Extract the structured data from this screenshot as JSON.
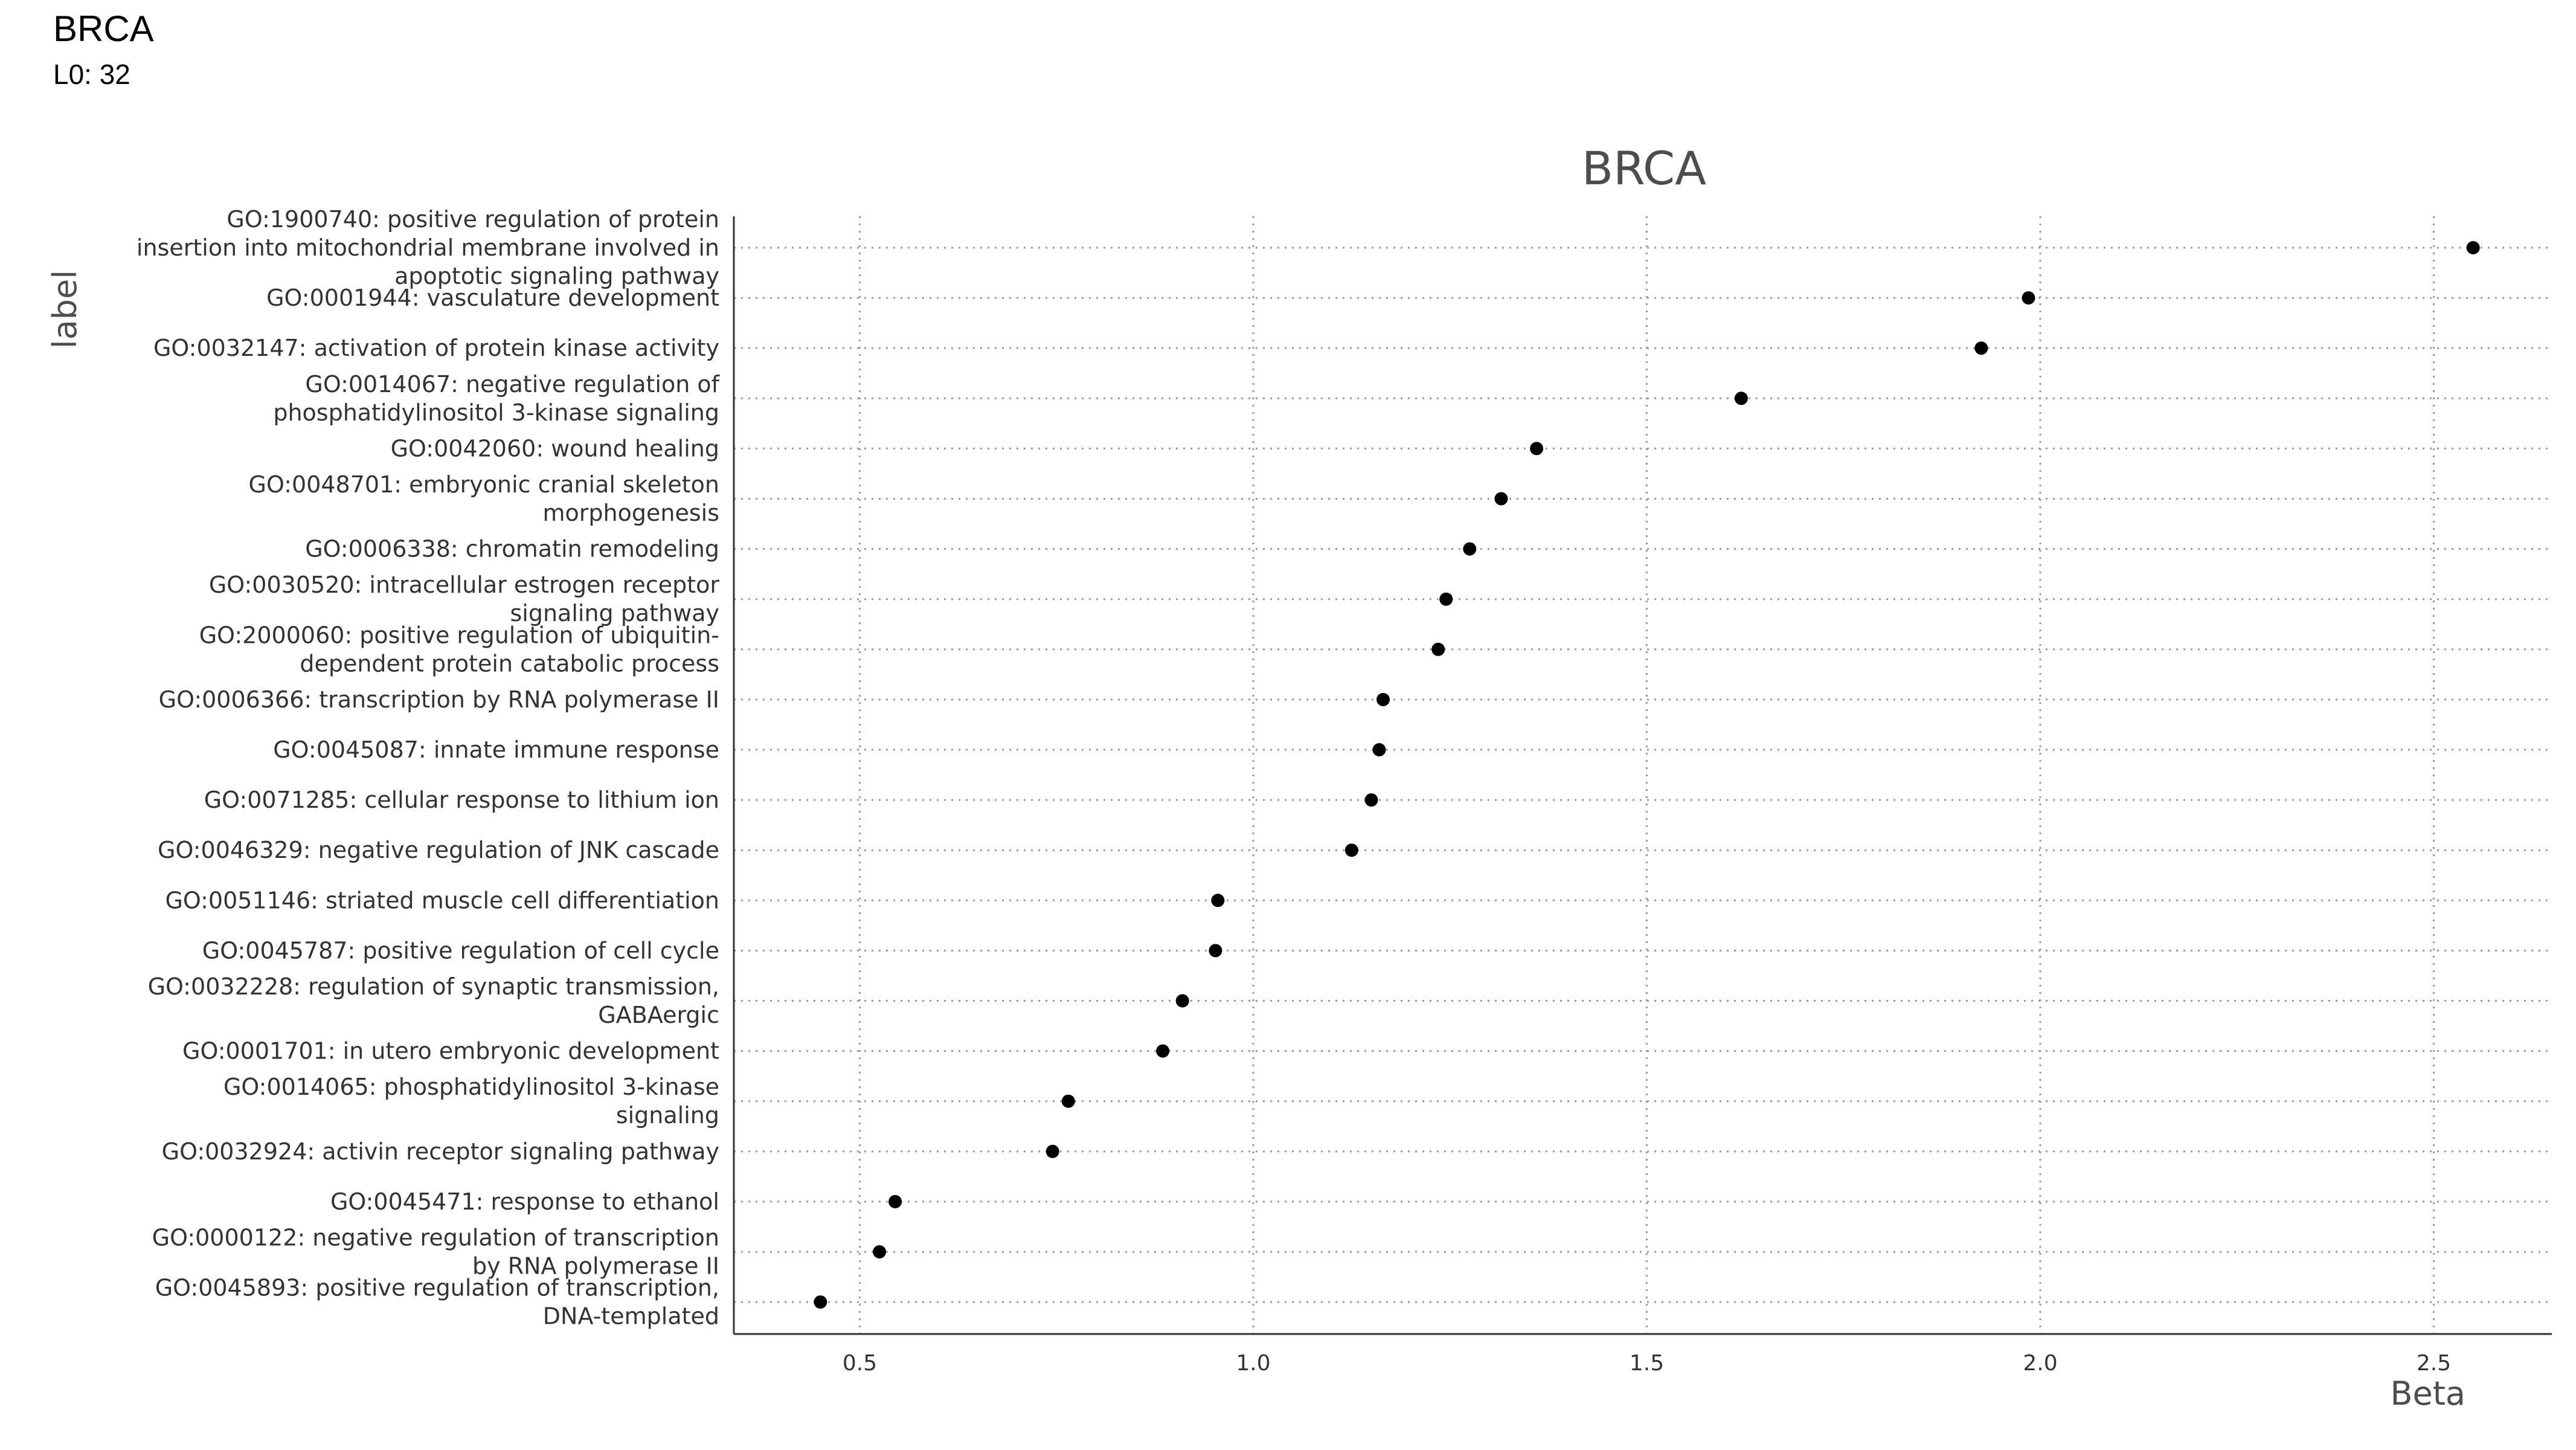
{
  "header": {
    "title": "BRCA",
    "subtitle": "L0: 32"
  },
  "chart_data": {
    "type": "scatter",
    "title": "BRCA",
    "xlabel": "Beta",
    "ylabel": "label",
    "xlim": [
      0.34,
      2.65
    ],
    "x_ticks": [
      0.5,
      1.0,
      1.5,
      2.0,
      2.5
    ],
    "x_tick_labels": [
      "0.5",
      "1.0",
      "1.5",
      "2.0",
      "2.5"
    ],
    "grid": true,
    "grid_style": "dotted",
    "point_color": "#000000",
    "points": [
      {
        "label": "GO:1900740: positive regulation of protein insertion into mitochondrial membrane involved in apoptotic signaling pathway",
        "lines": [
          "GO:1900740: positive regulation of protein",
          "insertion into mitochondrial membrane involved in",
          "apoptotic signaling pathway"
        ],
        "value": 2.55
      },
      {
        "label": "GO:0001944: vasculature development",
        "lines": [
          "GO:0001944: vasculature development"
        ],
        "value": 1.985
      },
      {
        "label": "GO:0032147: activation of protein kinase activity",
        "lines": [
          "GO:0032147: activation of protein kinase activity"
        ],
        "value": 1.925
      },
      {
        "label": "GO:0014067: negative regulation of phosphatidylinositol 3-kinase signaling",
        "lines": [
          "GO:0014067: negative regulation of",
          "phosphatidylinositol 3-kinase signaling"
        ],
        "value": 1.62
      },
      {
        "label": "GO:0042060: wound healing",
        "lines": [
          "GO:0042060: wound healing"
        ],
        "value": 1.36
      },
      {
        "label": "GO:0048701: embryonic cranial skeleton morphogenesis",
        "lines": [
          "GO:0048701: embryonic cranial skeleton",
          "morphogenesis"
        ],
        "value": 1.315
      },
      {
        "label": "GO:0006338: chromatin remodeling",
        "lines": [
          "GO:0006338: chromatin remodeling"
        ],
        "value": 1.275
      },
      {
        "label": "GO:0030520: intracellular estrogen receptor signaling pathway",
        "lines": [
          "GO:0030520: intracellular estrogen receptor",
          "signaling pathway"
        ],
        "value": 1.245
      },
      {
        "label": "GO:2000060: positive regulation of ubiquitin-dependent protein catabolic process",
        "lines": [
          "GO:2000060: positive regulation of ubiquitin-",
          "dependent protein catabolic process"
        ],
        "value": 1.235
      },
      {
        "label": "GO:0006366: transcription by RNA polymerase II",
        "lines": [
          "GO:0006366: transcription by RNA polymerase II"
        ],
        "value": 1.165
      },
      {
        "label": "GO:0045087: innate immune response",
        "lines": [
          "GO:0045087: innate immune response"
        ],
        "value": 1.16
      },
      {
        "label": "GO:0071285: cellular response to lithium ion",
        "lines": [
          "GO:0071285: cellular response to lithium ion"
        ],
        "value": 1.15
      },
      {
        "label": "GO:0046329: negative regulation of JNK cascade",
        "lines": [
          "GO:0046329: negative regulation of JNK cascade"
        ],
        "value": 1.125
      },
      {
        "label": "GO:0051146: striated muscle cell differentiation",
        "lines": [
          "GO:0051146: striated muscle cell differentiation"
        ],
        "value": 0.955
      },
      {
        "label": "GO:0045787: positive regulation of cell cycle",
        "lines": [
          "GO:0045787: positive regulation of cell cycle"
        ],
        "value": 0.952
      },
      {
        "label": "GO:0032228: regulation of synaptic transmission, GABAergic",
        "lines": [
          "GO:0032228: regulation of synaptic transmission,",
          "GABAergic"
        ],
        "value": 0.91
      },
      {
        "label": "GO:0001701: in utero embryonic development",
        "lines": [
          "GO:0001701: in utero embryonic development"
        ],
        "value": 0.885
      },
      {
        "label": "GO:0014065: phosphatidylinositol 3-kinase signaling",
        "lines": [
          "GO:0014065: phosphatidylinositol 3-kinase",
          "signaling"
        ],
        "value": 0.765
      },
      {
        "label": "GO:0032924: activin receptor signaling pathway",
        "lines": [
          "GO:0032924: activin receptor signaling pathway"
        ],
        "value": 0.745
      },
      {
        "label": "GO:0045471: response to ethanol",
        "lines": [
          "GO:0045471: response to ethanol"
        ],
        "value": 0.545
      },
      {
        "label": "GO:0000122: negative regulation of transcription by RNA polymerase II",
        "lines": [
          "GO:0000122: negative regulation of transcription",
          "by RNA polymerase II"
        ],
        "value": 0.525
      },
      {
        "label": "GO:0045893: positive regulation of transcription, DNA-templated",
        "lines": [
          "GO:0045893: positive regulation of transcription,",
          "DNA-templated"
        ],
        "value": 0.45
      }
    ]
  }
}
